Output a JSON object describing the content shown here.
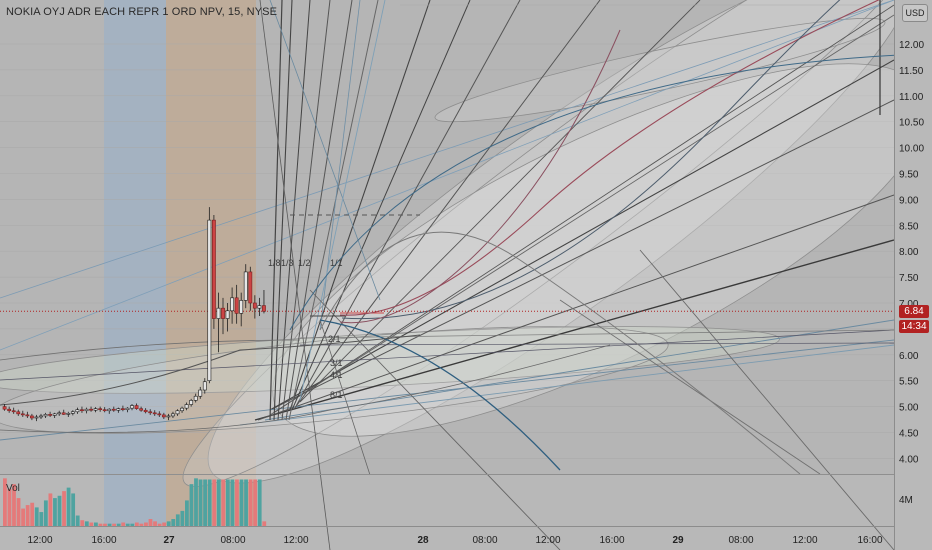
{
  "header": {
    "title": "NOKIA OYJ ADR EACH REPR 1 ORD NPV, 15, NYSE",
    "currency_button": "USD"
  },
  "price_scale": {
    "labels": [
      "12.00",
      "11.50",
      "11.00",
      "10.50",
      "10.00",
      "9.50",
      "9.00",
      "8.50",
      "8.00",
      "7.50",
      "7.00",
      "6.50",
      "6.00",
      "5.50",
      "5.00",
      "4.50",
      "4.00"
    ]
  },
  "last_price": {
    "value": "6.84",
    "countdown": "14:34",
    "color": "#b22222"
  },
  "volume": {
    "label": "Vol",
    "scale_label": "4M"
  },
  "time_axis": {
    "labels": [
      "12:00",
      "16:00",
      "27",
      "08:00",
      "12:00",
      "28",
      "08:00",
      "12:00",
      "16:00",
      "29",
      "08:00",
      "12:00",
      "16:00"
    ]
  },
  "annotations": {
    "fan_labels": [
      "1/8",
      "1/3",
      "1/2",
      "1/1",
      "2/1",
      "3/1",
      "4/1",
      "8/1"
    ]
  },
  "chart_data": {
    "type": "candlestick",
    "symbol": "NOKIA OYJ ADR EACH REPR 1 ORD NPV",
    "interval": "15",
    "exchange": "NYSE",
    "ylim": [
      3.8,
      12.3
    ],
    "last_price": 6.84,
    "candles": [
      {
        "o": 5.0,
        "h": 5.05,
        "l": 4.92,
        "c": 4.95
      },
      {
        "o": 4.95,
        "h": 5.0,
        "l": 4.88,
        "c": 4.92
      },
      {
        "o": 4.92,
        "h": 4.98,
        "l": 4.86,
        "c": 4.9
      },
      {
        "o": 4.9,
        "h": 4.94,
        "l": 4.82,
        "c": 4.86
      },
      {
        "o": 4.86,
        "h": 4.92,
        "l": 4.8,
        "c": 4.84
      },
      {
        "o": 4.84,
        "h": 4.9,
        "l": 4.78,
        "c": 4.82
      },
      {
        "o": 4.82,
        "h": 4.86,
        "l": 4.74,
        "c": 4.78
      },
      {
        "o": 4.78,
        "h": 4.84,
        "l": 4.72,
        "c": 4.8
      },
      {
        "o": 4.8,
        "h": 4.86,
        "l": 4.76,
        "c": 4.82
      },
      {
        "o": 4.82,
        "h": 4.88,
        "l": 4.78,
        "c": 4.85
      },
      {
        "o": 4.85,
        "h": 4.9,
        "l": 4.8,
        "c": 4.83
      },
      {
        "o": 4.83,
        "h": 4.88,
        "l": 4.78,
        "c": 4.86
      },
      {
        "o": 4.86,
        "h": 4.92,
        "l": 4.82,
        "c": 4.88
      },
      {
        "o": 4.88,
        "h": 4.94,
        "l": 4.84,
        "c": 4.85
      },
      {
        "o": 4.85,
        "h": 4.9,
        "l": 4.8,
        "c": 4.87
      },
      {
        "o": 4.87,
        "h": 4.93,
        "l": 4.83,
        "c": 4.9
      },
      {
        "o": 4.9,
        "h": 4.98,
        "l": 4.86,
        "c": 4.94
      },
      {
        "o": 4.94,
        "h": 5.0,
        "l": 4.88,
        "c": 4.92
      },
      {
        "o": 4.92,
        "h": 4.98,
        "l": 4.87,
        "c": 4.95
      },
      {
        "o": 4.95,
        "h": 5.0,
        "l": 4.9,
        "c": 4.93
      },
      {
        "o": 4.93,
        "h": 4.99,
        "l": 4.89,
        "c": 4.96
      },
      {
        "o": 4.96,
        "h": 5.0,
        "l": 4.9,
        "c": 4.94
      },
      {
        "o": 4.94,
        "h": 4.99,
        "l": 4.89,
        "c": 4.92
      },
      {
        "o": 4.92,
        "h": 4.97,
        "l": 4.86,
        "c": 4.95
      },
      {
        "o": 4.95,
        "h": 5.0,
        "l": 4.9,
        "c": 4.93
      },
      {
        "o": 4.93,
        "h": 4.98,
        "l": 4.88,
        "c": 4.96
      },
      {
        "o": 4.96,
        "h": 5.02,
        "l": 4.91,
        "c": 4.94
      },
      {
        "o": 4.94,
        "h": 4.99,
        "l": 4.89,
        "c": 4.97
      },
      {
        "o": 4.97,
        "h": 5.05,
        "l": 4.93,
        "c": 5.02
      },
      {
        "o": 5.02,
        "h": 5.06,
        "l": 4.94,
        "c": 4.96
      },
      {
        "o": 4.96,
        "h": 5.0,
        "l": 4.9,
        "c": 4.93
      },
      {
        "o": 4.93,
        "h": 4.97,
        "l": 4.87,
        "c": 4.9
      },
      {
        "o": 4.9,
        "h": 4.95,
        "l": 4.84,
        "c": 4.88
      },
      {
        "o": 4.88,
        "h": 4.93,
        "l": 4.82,
        "c": 4.86
      },
      {
        "o": 4.86,
        "h": 4.91,
        "l": 4.8,
        "c": 4.84
      },
      {
        "o": 4.84,
        "h": 4.88,
        "l": 4.76,
        "c": 4.8
      },
      {
        "o": 4.8,
        "h": 4.86,
        "l": 4.74,
        "c": 4.82
      },
      {
        "o": 4.82,
        "h": 4.9,
        "l": 4.78,
        "c": 4.86
      },
      {
        "o": 4.86,
        "h": 4.95,
        "l": 4.82,
        "c": 4.92
      },
      {
        "o": 4.92,
        "h": 5.0,
        "l": 4.88,
        "c": 4.97
      },
      {
        "o": 4.97,
        "h": 5.08,
        "l": 4.93,
        "c": 5.04
      },
      {
        "o": 5.04,
        "h": 5.15,
        "l": 5.0,
        "c": 5.12
      },
      {
        "o": 5.12,
        "h": 5.25,
        "l": 5.08,
        "c": 5.2
      },
      {
        "o": 5.2,
        "h": 5.38,
        "l": 5.15,
        "c": 5.32
      },
      {
        "o": 5.32,
        "h": 5.55,
        "l": 5.25,
        "c": 5.48
      },
      {
        "o": 5.5,
        "h": 8.85,
        "l": 5.45,
        "c": 8.6
      },
      {
        "o": 8.6,
        "h": 8.7,
        "l": 6.5,
        "c": 6.7
      },
      {
        "o": 6.7,
        "h": 7.2,
        "l": 6.05,
        "c": 6.9
      },
      {
        "o": 6.9,
        "h": 7.1,
        "l": 6.4,
        "c": 6.7
      },
      {
        "o": 6.7,
        "h": 7.0,
        "l": 6.45,
        "c": 6.85
      },
      {
        "o": 6.85,
        "h": 7.3,
        "l": 6.6,
        "c": 7.1
      },
      {
        "o": 7.1,
        "h": 7.35,
        "l": 6.6,
        "c": 6.8
      },
      {
        "o": 6.8,
        "h": 7.2,
        "l": 6.55,
        "c": 7.05
      },
      {
        "o": 7.05,
        "h": 7.75,
        "l": 6.9,
        "c": 7.6
      },
      {
        "o": 7.6,
        "h": 7.7,
        "l": 6.85,
        "c": 7.0
      },
      {
        "o": 7.0,
        "h": 7.15,
        "l": 6.7,
        "c": 6.9
      },
      {
        "o": 6.9,
        "h": 7.1,
        "l": 6.75,
        "c": 6.95
      },
      {
        "o": 6.95,
        "h": 7.25,
        "l": 6.8,
        "c": 6.84
      }
    ],
    "volume_millions": [
      4.1,
      3.2,
      3.6,
      2.4,
      1.5,
      1.8,
      2.0,
      1.6,
      1.2,
      2.2,
      2.8,
      2.4,
      2.6,
      3.0,
      3.3,
      2.8,
      0.9,
      0.5,
      0.4,
      0.3,
      0.3,
      0.2,
      0.2,
      0.2,
      0.2,
      0.2,
      0.3,
      0.2,
      0.2,
      0.3,
      0.2,
      0.3,
      0.6,
      0.4,
      0.2,
      0.3,
      0.4,
      0.6,
      1.0,
      1.3,
      2.2,
      3.6,
      4.1,
      4.0,
      4.0,
      4.0,
      4.0,
      4.0,
      4.0,
      4.0,
      4.0,
      4.0,
      4.0,
      4.0,
      4.0,
      4.0,
      4.0,
      0.4
    ]
  }
}
